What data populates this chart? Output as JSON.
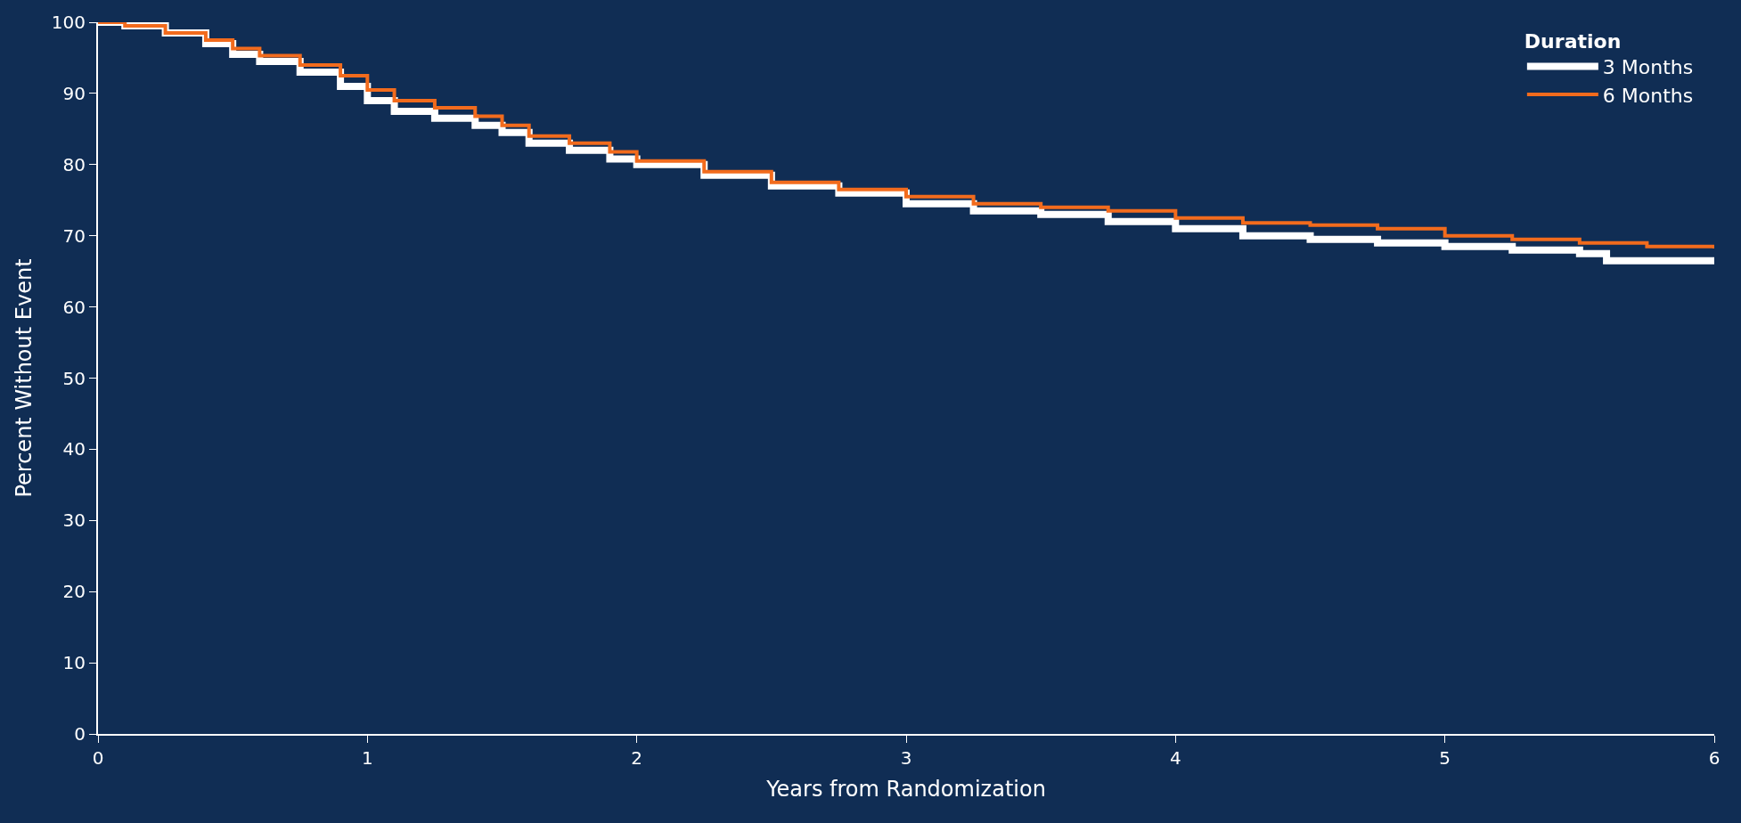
{
  "chart_data": {
    "type": "step",
    "xlabel": "Years from Randomization",
    "ylabel": "Percent Without Event",
    "legend_title": "Duration",
    "legend": "top right",
    "grid": false,
    "xlim": [
      0,
      6
    ],
    "ylim": [
      0,
      100
    ],
    "xticks": [
      0,
      1,
      2,
      3,
      4,
      5,
      6
    ],
    "yticks": [
      0,
      10,
      20,
      30,
      40,
      50,
      60,
      70,
      80,
      90,
      100
    ],
    "series": [
      {
        "name": "3 Months",
        "color": "#ffffff",
        "x": [
          0,
          0.1,
          0.25,
          0.4,
          0.5,
          0.6,
          0.75,
          0.9,
          1.0,
          1.1,
          1.25,
          1.4,
          1.5,
          1.6,
          1.75,
          1.9,
          2.0,
          2.25,
          2.5,
          2.75,
          3.0,
          3.25,
          3.5,
          3.75,
          4.0,
          4.25,
          4.5,
          4.75,
          5.0,
          5.25,
          5.5,
          5.6,
          5.9,
          6.0
        ],
        "values": [
          100,
          99.5,
          98.5,
          97,
          95.5,
          94.5,
          93,
          91,
          89,
          87.5,
          86.5,
          85.5,
          84.5,
          83,
          82,
          80.8,
          80,
          78.5,
          77,
          76,
          74.5,
          73.5,
          73,
          72,
          71,
          70,
          69.5,
          69,
          68.5,
          68,
          67.5,
          66.5,
          66.5,
          66
        ]
      },
      {
        "name": "6 Months",
        "color": "#f26b1d",
        "x": [
          0,
          0.1,
          0.25,
          0.4,
          0.5,
          0.6,
          0.75,
          0.9,
          1.0,
          1.1,
          1.25,
          1.4,
          1.5,
          1.6,
          1.75,
          1.9,
          2.0,
          2.25,
          2.5,
          2.75,
          3.0,
          3.25,
          3.5,
          3.75,
          4.0,
          4.25,
          4.5,
          4.75,
          5.0,
          5.25,
          5.5,
          5.75,
          6.0
        ],
        "values": [
          100,
          99.5,
          98.5,
          97.5,
          96.3,
          95.3,
          94,
          92.5,
          90.5,
          89,
          88,
          86.8,
          85.5,
          84,
          83,
          81.8,
          80.5,
          79,
          77.5,
          76.5,
          75.5,
          74.5,
          74,
          73.5,
          72.5,
          71.8,
          71.5,
          71,
          70,
          69.5,
          69,
          68.5,
          68.2
        ]
      }
    ]
  }
}
